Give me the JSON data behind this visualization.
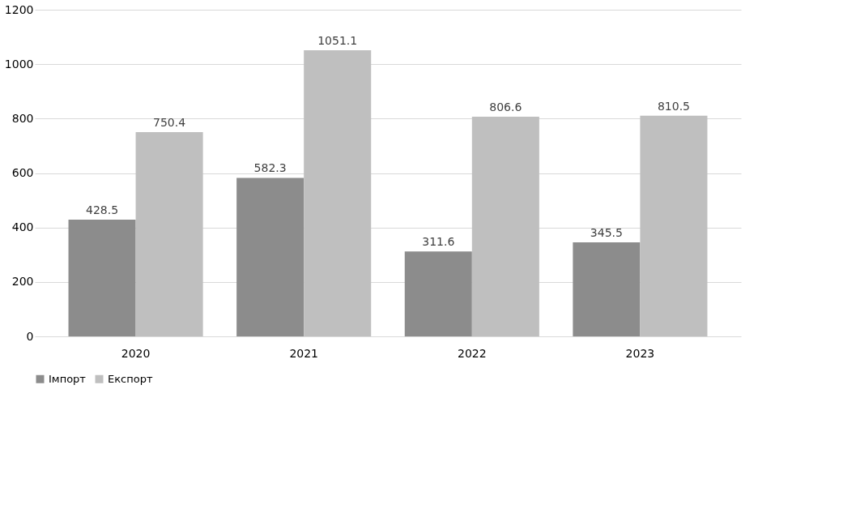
{
  "chart_data": {
    "type": "bar",
    "categories": [
      "2020",
      "2021",
      "2022",
      "2023"
    ],
    "series": [
      {
        "name": "Імпорт",
        "color": "#8c8c8c",
        "values": [
          428.5,
          582.3,
          311.6,
          345.5
        ]
      },
      {
        "name": "Експорт",
        "color": "#bfbfbf",
        "values": [
          750.4,
          1051.1,
          806.6,
          810.5
        ]
      }
    ],
    "ylim": [
      0,
      1200
    ],
    "yticks": [
      0,
      200,
      400,
      600,
      800,
      1000,
      1200
    ],
    "grid": "y",
    "legend": "bottom",
    "data_labels": true
  }
}
